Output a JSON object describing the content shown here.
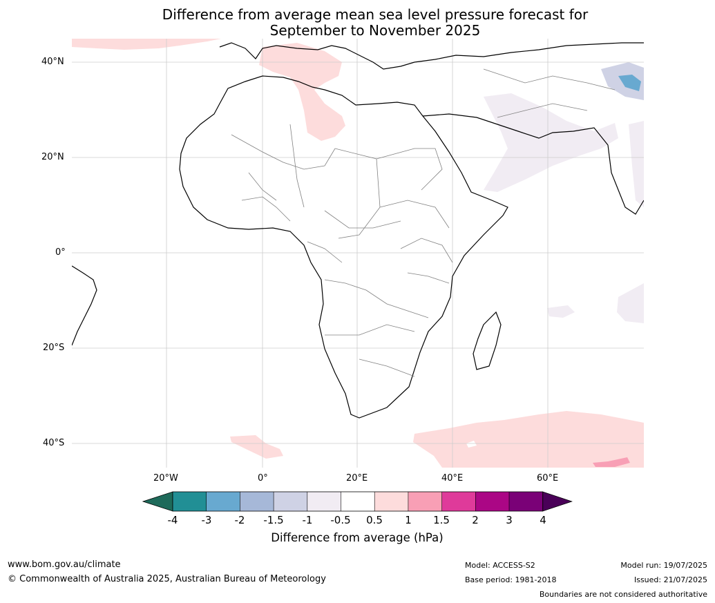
{
  "title": {
    "line1": "Difference from average mean sea level pressure forecast for",
    "line2": "September to November 2025"
  },
  "map": {
    "lat_ticks": [
      "40°N",
      "20°N",
      "0°",
      "20°S",
      "40°S"
    ],
    "lon_ticks": [
      "20°W",
      "0°",
      "20°E",
      "40°E",
      "60°E"
    ]
  },
  "legend": {
    "labels": [
      "-4",
      "-3",
      "-2",
      "-1.5",
      "-1",
      "-0.5",
      "0.5",
      "1",
      "1.5",
      "2",
      "3",
      "4"
    ],
    "colors": [
      "#1e6a5a",
      "#218f95",
      "#68a9d0",
      "#a6b8d8",
      "#cfd2e5",
      "#f1ecf3",
      "#ffffff",
      "#fddcdc",
      "#f89fb5",
      "#df3a9a",
      "#ab0685",
      "#7a0177",
      "#4a0058"
    ],
    "title": "Difference from average (hPa)"
  },
  "footer": {
    "url": "www.bom.gov.au/climate",
    "copyright": "© Commonwealth of Australia 2025, Australian Bureau of Meteorology",
    "model": "Model: ACCESS-S2",
    "base_period": "Base period: 1981-2018",
    "model_run": "Model run: 19/07/2025",
    "issued": "Issued: 21/07/2025",
    "disclaimer": "Boundaries are not considered authoritative"
  }
}
